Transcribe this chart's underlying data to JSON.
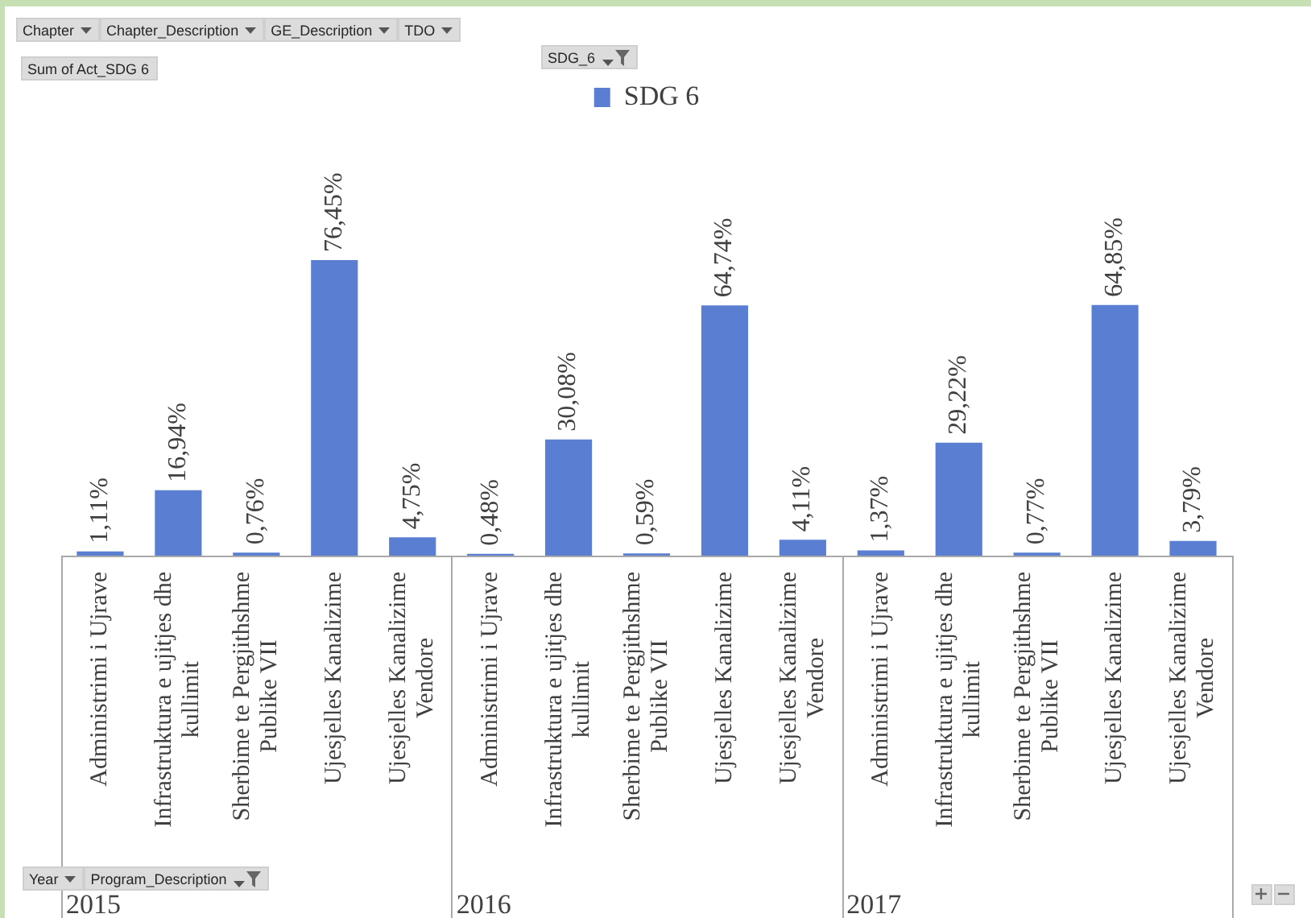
{
  "chart_data": {
    "type": "bar",
    "legend_title": "SDG_6",
    "legend": "top",
    "tick_labels": "x",
    "categories": [
      "Administrimi i Ujrave",
      "Infrastruktura e ujitjes dhe kullimit",
      "Sherbime te Pergjithshme Publike VII",
      "Ujesjelles Kanalizime",
      "Ujesjelles Kanalizime Vendore",
      "Administrimi i Ujrave",
      "Infrastruktura e ujitjes dhe kullimit",
      "Sherbime te Pergjithshme Publike VII",
      "Ujesjelles Kanalizime",
      "Ujesjelles Kanalizime Vendore",
      "Administrimi i Ujrave",
      "Infrastruktura e ujitjes dhe kullimit",
      "Sherbime te Pergjithshme Publike VII",
      "Ujesjelles Kanalizime",
      "Ujesjelles Kanalizime Vendore"
    ],
    "series": [
      {
        "name": "SDG 6",
        "color": "#5a7fd2",
        "values": [
          1.11,
          16.94,
          0.76,
          76.45,
          4.75,
          0.48,
          30.08,
          0.59,
          64.74,
          4.11,
          1.37,
          29.22,
          0.77,
          64.85,
          3.79
        ],
        "value_labels": [
          "1,11%",
          "16,94%",
          "0,76%",
          "76,45%",
          "4,75%",
          "0,48%",
          "30,08%",
          "0,59%",
          "64,74%",
          "4,11%",
          "1,37%",
          "29,22%",
          "0,77%",
          "64,85%",
          "3,79%"
        ]
      }
    ],
    "annotations": [
      "Chapter",
      "Chapter_Description",
      "GE_Description",
      "TDO",
      "Sum of Act_SDG 6",
      "Year",
      "Program_Description",
      "2015",
      "2016",
      "2017"
    ]
  }
}
